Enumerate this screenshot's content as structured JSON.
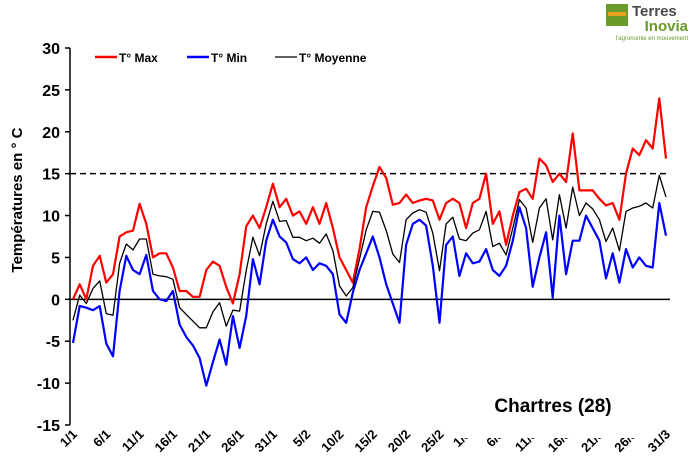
{
  "logo": {
    "line1": "Terres",
    "line2": "Inovia",
    "tagline": "l'agronomie en mouvement"
  },
  "chart_data": {
    "type": "line",
    "y_label": "Températures en ° C",
    "annotation": "Chartres (28)",
    "reference_line": 15,
    "ylim": [
      -15,
      30
    ],
    "yticks": [
      -15,
      -10,
      -5,
      0,
      5,
      10,
      15,
      20,
      25,
      30
    ],
    "legend": "top-left",
    "categories": [
      "1/1",
      null,
      null,
      null,
      null,
      "6/1",
      null,
      null,
      null,
      null,
      "11/1",
      null,
      null,
      null,
      null,
      "16/1",
      null,
      null,
      null,
      null,
      "21/1",
      null,
      null,
      null,
      null,
      "26/1",
      null,
      null,
      null,
      null,
      "31/1",
      null,
      null,
      null,
      null,
      "5/2",
      null,
      null,
      null,
      null,
      "10/2",
      null,
      null,
      null,
      null,
      "15/2",
      null,
      null,
      null,
      null,
      "20/2",
      null,
      null,
      null,
      null,
      "25/2",
      null,
      null,
      null,
      "1/3",
      null,
      null,
      null,
      null,
      "6/3",
      null,
      null,
      null,
      null,
      "11/3",
      null,
      null,
      null,
      null,
      "16/3",
      null,
      null,
      null,
      null,
      "21/3",
      null,
      null,
      null,
      null,
      "26/3",
      null,
      null,
      null,
      null,
      "31/3"
    ],
    "series": [
      {
        "name": "T° Max",
        "color": "#ff0000",
        "values": [
          0,
          1.8,
          0,
          4,
          5.2,
          2,
          3,
          7.5,
          8,
          8.2,
          11.4,
          9,
          5,
          5.5,
          5.5,
          3.8,
          1,
          1,
          0.3,
          0.3,
          3.5,
          4.5,
          4,
          1.5,
          -0.5,
          3,
          8.7,
          10,
          8.5,
          11,
          13.8,
          11,
          12,
          10,
          10.5,
          9,
          11,
          9,
          11.5,
          8.5,
          5,
          3.5,
          2,
          6,
          11,
          13.5,
          15.8,
          14.5,
          11.3,
          11.5,
          12.5,
          11.5,
          11.8,
          12,
          11.8,
          9.5,
          11.5,
          12,
          11.5,
          8.5,
          11.5,
          12,
          15,
          9,
          10.5,
          6.5,
          10,
          12.8,
          13.2,
          12,
          16.8,
          16,
          14,
          15,
          14,
          19.8,
          13,
          13,
          13,
          12,
          11.2,
          11.5,
          9.5,
          15,
          18,
          17.2,
          19,
          18,
          24,
          16.8
        ]
      },
      {
        "name": "T° Min",
        "color": "#0000ff",
        "values": [
          -5.2,
          -0.8,
          -1,
          -1.3,
          -0.8,
          -5.3,
          -6.8,
          1,
          5.2,
          3.5,
          3,
          5.3,
          1,
          0,
          -0.2,
          1,
          -3,
          -4.5,
          -5.5,
          -7,
          -10.3,
          -7.5,
          -4.8,
          -7.8,
          -2,
          -5.8,
          -2,
          4.8,
          1.8,
          7,
          9.5,
          7.5,
          6.8,
          4.8,
          4.3,
          5,
          3.5,
          4.3,
          4,
          3,
          -1.8,
          -2.8,
          0.8,
          3.5,
          5.5,
          7.5,
          5,
          1.8,
          -0.5,
          -2.8,
          6.5,
          9,
          9.5,
          8.8,
          4,
          -2.8,
          6.5,
          7.5,
          2.8,
          5.5,
          4.3,
          4.5,
          6,
          3.5,
          2.8,
          4,
          7,
          11,
          8.5,
          1.5,
          5,
          8,
          0.2,
          10,
          3,
          7,
          7,
          10,
          8.5,
          7,
          2.5,
          5.5,
          2,
          6,
          3.8,
          5,
          4,
          3.8,
          11.5,
          7.6
        ]
      },
      {
        "name": "T° Moyenne",
        "color": "#000000",
        "values": [
          -2.5,
          0.5,
          -0.5,
          1.3,
          2.2,
          -1.7,
          -1.9,
          4.3,
          6.6,
          5.9,
          7.2,
          7.2,
          3,
          2.8,
          2.7,
          2.4,
          -1,
          -1.8,
          -2.6,
          -3.4,
          -3.4,
          -1.5,
          -0.4,
          -3.2,
          -1.3,
          -1.4,
          3.4,
          7.4,
          5.2,
          9,
          11.7,
          9.3,
          9.4,
          7.4,
          7.4,
          7,
          7.3,
          6.7,
          7.8,
          5.8,
          1.6,
          0.4,
          1.4,
          4.8,
          8.3,
          10.5,
          10.4,
          8.2,
          5.4,
          4.4,
          9.5,
          10.3,
          10.7,
          10.4,
          7.9,
          3.4,
          9,
          9.8,
          7.2,
          7,
          7.9,
          8.3,
          10.5,
          6.3,
          6.7,
          5.3,
          8.5,
          11.9,
          10.9,
          6.8,
          10.9,
          12,
          7.1,
          12.5,
          8.5,
          13.4,
          10,
          11.5,
          10.8,
          9.5,
          6.9,
          8.5,
          5.8,
          10.5,
          10.9,
          11.1,
          11.5,
          10.9,
          14.8,
          12.2
        ]
      }
    ]
  }
}
